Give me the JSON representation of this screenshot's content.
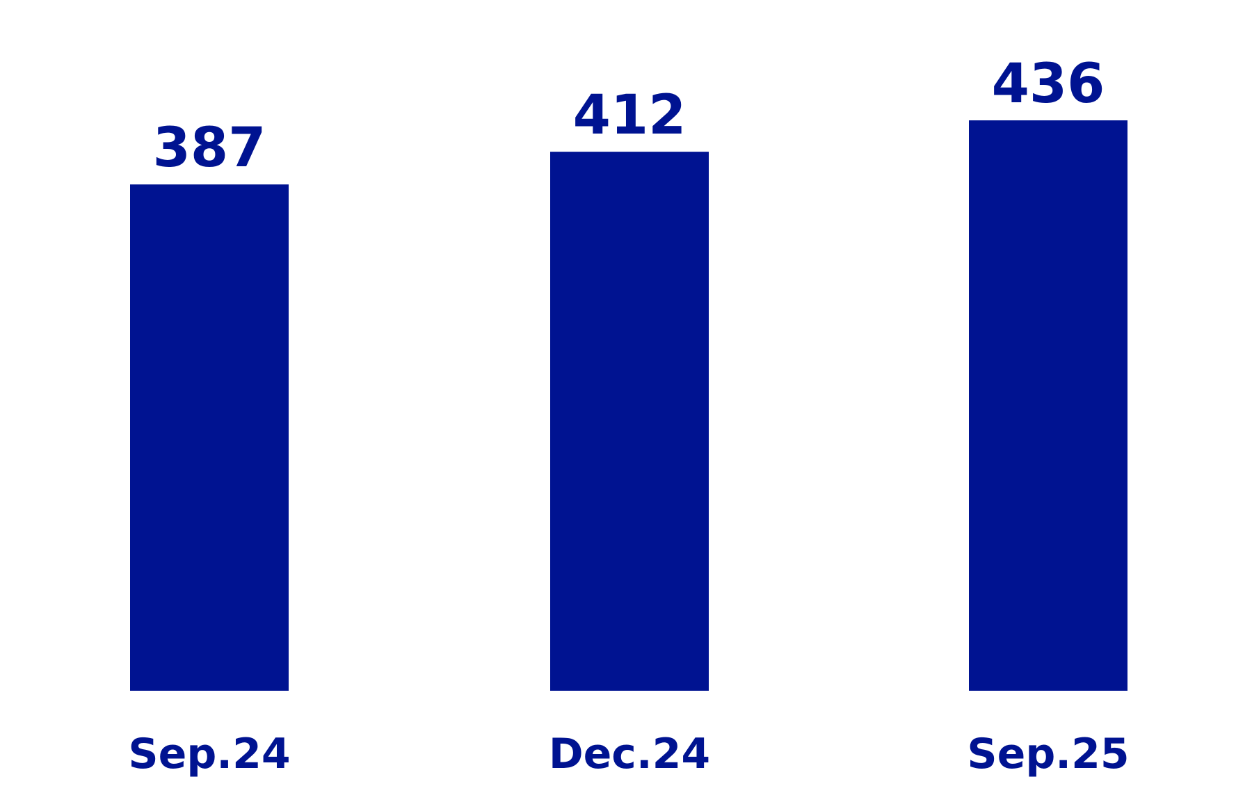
{
  "chart_data": {
    "type": "bar",
    "categories": [
      "Sep.24",
      "Dec.24",
      "Sep.25"
    ],
    "values": [
      387,
      412,
      436
    ],
    "color": "#001391"
  }
}
